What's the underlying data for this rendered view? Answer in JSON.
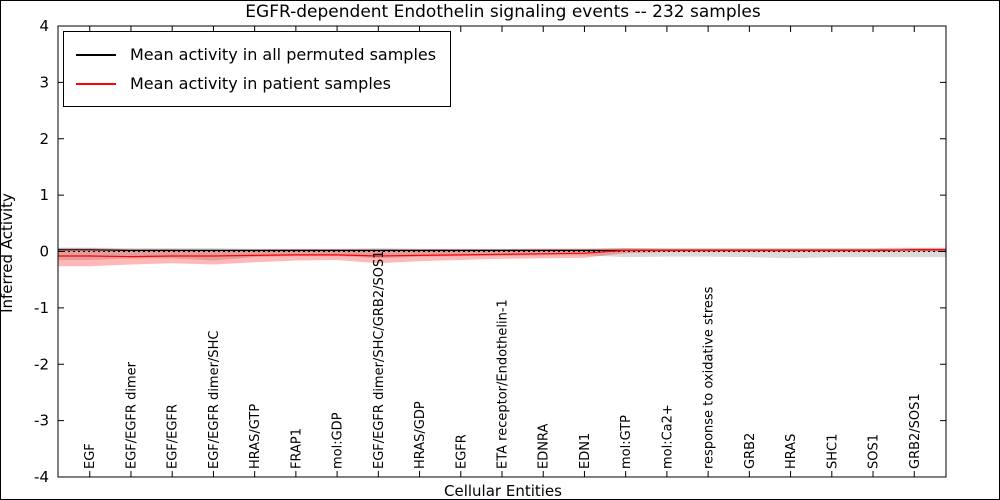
{
  "figure": {
    "title": "EGFR-dependent Endothelin signaling events -- 232 samples",
    "xlabel": "Cellular Entities",
    "ylabel": "Inferred Activity"
  },
  "legend": {
    "items": [
      {
        "label": "Mean activity in all permuted samples",
        "color": "#000000"
      },
      {
        "label": "Mean activity in patient samples",
        "color": "#ff0000"
      }
    ]
  },
  "chart_data": {
    "type": "line",
    "title": "EGFR-dependent Endothelin signaling events -- 232 samples",
    "xlabel": "Cellular Entities",
    "ylabel": "Inferred Activity",
    "ylim": [
      -4,
      4
    ],
    "yticks": [
      -4,
      -3,
      -2,
      -1,
      0,
      1,
      2,
      3,
      4
    ],
    "grid": false,
    "legend_position": "upper left",
    "zero_line": {
      "y": 0,
      "style": "dashed",
      "color": "#000000"
    },
    "categories": [
      "EGF",
      "EGF/EGFR dimer",
      "EGF/EGFR",
      "EGF/EGFR dimer/SHC",
      "HRAS/GTP",
      "FRAP1",
      "mol:GDP",
      "EGF/EGFR dimer/SHC/GRB2/SOS1",
      "HRAS/GDP",
      "EGFR",
      "ETA receptor/Endothelin-1",
      "EDNRA",
      "EDN1",
      "mol:GTP",
      "mol:Ca2+",
      "response to oxidative stress",
      "GRB2",
      "HRAS",
      "SHC1",
      "SOS1",
      "GRB2/SOS1"
    ],
    "series": [
      {
        "name": "Mean activity in all permuted samples",
        "color": "#000000",
        "band_color": "#bbbbbb",
        "band_opacity": 0.55,
        "values": [
          0.03,
          0.02,
          0.02,
          0.02,
          0.02,
          0.02,
          0.02,
          0.02,
          0.02,
          0.02,
          0.02,
          0.02,
          0.02,
          0.02,
          0.02,
          0.02,
          0.02,
          0.02,
          0.02,
          0.02,
          0.03
        ],
        "band_upper": [
          0.07,
          0.06,
          0.06,
          0.06,
          0.05,
          0.05,
          0.05,
          0.06,
          0.05,
          0.05,
          0.05,
          0.05,
          0.05,
          0.06,
          0.06,
          0.06,
          0.06,
          0.06,
          0.06,
          0.06,
          0.07
        ],
        "band_lower": [
          -0.15,
          -0.12,
          -0.12,
          -0.16,
          -0.1,
          -0.08,
          -0.08,
          -0.12,
          -0.09,
          -0.08,
          -0.08,
          -0.07,
          -0.07,
          -0.1,
          -0.09,
          -0.09,
          -0.1,
          -0.12,
          -0.1,
          -0.1,
          -0.1
        ]
      },
      {
        "name": "Mean activity in patient samples",
        "color": "#ff0000",
        "band_color": "#ff0000",
        "band_opacity": 0.28,
        "values": [
          -0.08,
          -0.09,
          -0.08,
          -0.08,
          -0.07,
          -0.06,
          -0.06,
          -0.08,
          -0.07,
          -0.06,
          -0.05,
          -0.04,
          -0.03,
          0.02,
          0.02,
          0.02,
          0.02,
          0.02,
          0.02,
          0.02,
          0.03
        ],
        "band_upper": [
          0.06,
          0.04,
          0.04,
          0.03,
          0.03,
          0.04,
          0.04,
          0.04,
          0.04,
          0.04,
          0.04,
          0.05,
          0.05,
          0.06,
          0.05,
          0.05,
          0.05,
          0.05,
          0.05,
          0.05,
          0.06
        ],
        "band_lower": [
          -0.26,
          -0.23,
          -0.21,
          -0.23,
          -0.19,
          -0.16,
          -0.15,
          -0.21,
          -0.17,
          -0.15,
          -0.13,
          -0.12,
          -0.11,
          -0.03,
          -0.01,
          -0.01,
          -0.01,
          -0.01,
          -0.01,
          -0.01,
          0.0
        ]
      }
    ]
  }
}
